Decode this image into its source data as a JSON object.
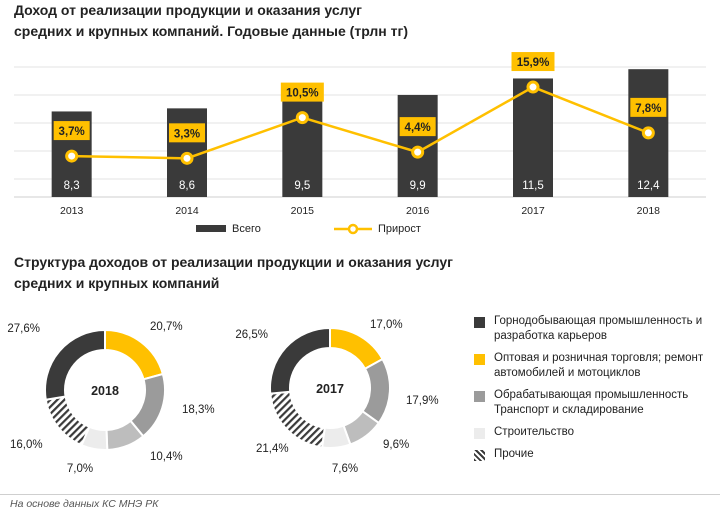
{
  "titles": {
    "top": "Доход от реализации продукции и оказания услуг\nсредних и крупных компаний. Годовые данные (трлн тг)",
    "bottom": "Структура доходов от реализации продукции и оказания услуг\nсредних и крупных компаний"
  },
  "footer": "На основе данных КС МНЭ РК",
  "colors": {
    "bar": "#3a3a3a",
    "line": "#ffc000",
    "dark": "#3a3a3a",
    "yellow": "#ffc000",
    "gray": "#9b9b9b",
    "light": "#ececec"
  },
  "chart_data": [
    {
      "type": "bar",
      "categories": [
        "2013",
        "2014",
        "2015",
        "2016",
        "2017",
        "2018"
      ],
      "series": [
        {
          "name": "Всего",
          "values": [
            8.3,
            8.6,
            9.5,
            9.9,
            11.5,
            12.4
          ],
          "labels": [
            "8,3",
            "8,6",
            "9,5",
            "9,9",
            "11,5",
            "12,4"
          ]
        },
        {
          "name": "Прирост",
          "type": "line",
          "values": [
            3.7,
            3.3,
            10.5,
            4.4,
            15.9,
            7.8
          ],
          "labels": [
            "3,7%",
            "3,3%",
            "10,5%",
            "4,4%",
            "15,9%",
            "7,8%"
          ]
        }
      ],
      "legend": [
        "Всего",
        "Прирост"
      ],
      "grid": true
    },
    {
      "type": "pie",
      "center_label": "2018",
      "slices": [
        {
          "category": "Горнодобывающая промышленность и разработка карьеров",
          "value": 27.6,
          "label": "27,6%"
        },
        {
          "category": "Оптовая и розничная торговля; ремонт автомобилей и мотоциклов",
          "value": 20.7,
          "label": "20,7%"
        },
        {
          "category": "Обрабатывающая промышленность",
          "value": 18.3,
          "label": "18,3%"
        },
        {
          "category": "Транспорт и складирование",
          "value": 10.4,
          "label": "10,4%"
        },
        {
          "category": "Строительство",
          "value": 7.0,
          "label": "7,0%"
        },
        {
          "category": "Прочие",
          "value": 16.0,
          "label": "16,0%"
        }
      ]
    },
    {
      "type": "pie",
      "center_label": "2017",
      "slices": [
        {
          "category": "Горнодобывающая промышленность и разработка карьеров",
          "value": 26.5,
          "label": "26,5%"
        },
        {
          "category": "Оптовая и розничная торговля; ремонт автомобилей и мотоциклов",
          "value": 17.0,
          "label": "17,0%"
        },
        {
          "category": "Обрабатывающая промышленность",
          "value": 17.9,
          "label": "17,9%"
        },
        {
          "category": "Транспорт и складирование",
          "value": 9.6,
          "label": "9,6%"
        },
        {
          "category": "Строительство",
          "value": 7.6,
          "label": "7,6%"
        },
        {
          "category": "Прочие",
          "value": 21.4,
          "label": "21,4%"
        }
      ]
    }
  ],
  "right_legend": [
    {
      "label": "Горнодобывающая промышленность и разработка карьеров",
      "color": "dark"
    },
    {
      "label": "Оптовая и розничная торговля; ремонт автомобилей и мотоциклов",
      "color": "yellow"
    },
    {
      "label": "Обрабатывающая промышленность Транспорт и складирование",
      "color": "gray"
    },
    {
      "label": "Строительство",
      "color": "light"
    },
    {
      "label": "Прочие",
      "color": "hatch"
    }
  ]
}
